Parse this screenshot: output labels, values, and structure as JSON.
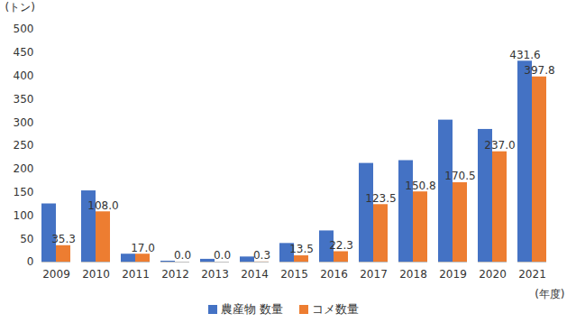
{
  "chart_data": {
    "type": "bar",
    "y_label": "(トン)",
    "x_label": "(年度)",
    "categories": [
      "2009",
      "2010",
      "2011",
      "2012",
      "2013",
      "2014",
      "2015",
      "2016",
      "2017",
      "2018",
      "2019",
      "2020",
      "2021"
    ],
    "series": [
      {
        "name": "農産物 数量",
        "color": "#4472c4",
        "values": [
          125,
          153,
          17,
          2,
          6,
          11,
          40,
          67,
          212,
          218,
          305,
          285,
          431.6
        ],
        "value_labels": [
          null,
          null,
          null,
          null,
          null,
          null,
          null,
          null,
          null,
          null,
          null,
          null,
          "431.6"
        ]
      },
      {
        "name": "コメ数量",
        "color": "#ed7d31",
        "values": [
          35.3,
          108.0,
          17.0,
          0,
          0,
          0.3,
          13.5,
          22.3,
          123.5,
          150.8,
          170.5,
          237.0,
          397.8
        ],
        "value_labels": [
          "35.3",
          "108.0",
          "17.0",
          "0.0",
          "0.0",
          "0.3",
          "13.5",
          "22.3",
          "123.5",
          "150.8",
          "170.5",
          "237.0",
          "397.8"
        ]
      }
    ],
    "ylim": [
      0,
      500
    ],
    "yticks": [
      0,
      50,
      100,
      150,
      200,
      250,
      300,
      350,
      400,
      450,
      500
    ],
    "grid": false,
    "data_labels": true,
    "legend": "bottom"
  }
}
